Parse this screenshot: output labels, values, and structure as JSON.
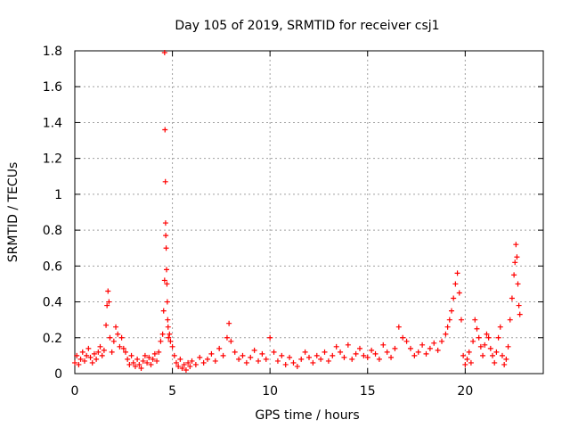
{
  "chart_data": {
    "type": "scatter",
    "title": "Day 105 of 2019, SRMTID for receiver csj1",
    "xlabel": "GPS time / hours",
    "ylabel": "SRMTID / TECUs",
    "xlim": [
      0,
      24
    ],
    "ylim": [
      0,
      1.8
    ],
    "xticks": [
      0,
      5,
      10,
      15,
      20
    ],
    "yticks": [
      0,
      0.2,
      0.4,
      0.6,
      0.8,
      1,
      1.2,
      1.4,
      1.6,
      1.8
    ],
    "xtick_labels": [
      "0",
      "5",
      "10",
      "15",
      "20"
    ],
    "ytick_labels": [
      "0",
      "0.2",
      "0.4",
      "0.6",
      "0.8",
      "1",
      "1.2",
      "1.4",
      "1.6",
      "1.8"
    ],
    "grid": true,
    "marker": "plus",
    "color": "#ff0000",
    "series": [
      {
        "name": "csj1",
        "x": [
          0.0,
          0.1,
          0.2,
          0.3,
          0.4,
          0.5,
          0.6,
          0.7,
          0.8,
          0.9,
          1.0,
          1.1,
          1.2,
          1.3,
          1.4,
          1.5,
          1.6,
          1.65,
          1.7,
          1.75,
          1.8,
          1.9,
          2.0,
          2.1,
          2.2,
          2.3,
          2.4,
          2.5,
          2.6,
          2.7,
          2.8,
          2.9,
          3.0,
          3.1,
          3.2,
          3.3,
          3.4,
          3.5,
          3.6,
          3.7,
          3.8,
          3.9,
          4.0,
          4.1,
          4.2,
          4.3,
          4.4,
          4.5,
          4.55,
          4.6,
          4.6,
          4.62,
          4.64,
          4.65,
          4.66,
          4.68,
          4.7,
          4.72,
          4.74,
          4.76,
          4.78,
          4.8,
          4.85,
          4.9,
          5.0,
          5.1,
          5.2,
          5.3,
          5.4,
          5.5,
          5.6,
          5.7,
          5.8,
          5.9,
          6.0,
          6.2,
          6.4,
          6.6,
          6.8,
          7.0,
          7.2,
          7.4,
          7.6,
          7.8,
          7.9,
          8.0,
          8.2,
          8.4,
          8.6,
          8.8,
          9.0,
          9.2,
          9.4,
          9.6,
          9.8,
          10.0,
          10.2,
          10.4,
          10.6,
          10.8,
          11.0,
          11.2,
          11.4,
          11.6,
          11.8,
          12.0,
          12.2,
          12.4,
          12.6,
          12.8,
          13.0,
          13.2,
          13.4,
          13.6,
          13.8,
          14.0,
          14.2,
          14.4,
          14.6,
          14.8,
          15.0,
          15.2,
          15.4,
          15.6,
          15.8,
          16.0,
          16.2,
          16.4,
          16.6,
          16.8,
          17.0,
          17.2,
          17.4,
          17.6,
          17.8,
          18.0,
          18.2,
          18.4,
          18.6,
          18.8,
          19.0,
          19.1,
          19.2,
          19.3,
          19.4,
          19.5,
          19.6,
          19.7,
          19.8,
          19.9,
          20.0,
          20.1,
          20.2,
          20.3,
          20.4,
          20.5,
          20.6,
          20.7,
          20.8,
          20.9,
          21.0,
          21.1,
          21.2,
          21.3,
          21.4,
          21.5,
          21.6,
          21.7,
          21.8,
          21.9,
          22.0,
          22.1,
          22.2,
          22.3,
          22.4,
          22.5,
          22.55,
          22.6,
          22.65,
          22.7,
          22.75,
          22.8
        ],
        "y": [
          0.06,
          0.1,
          0.05,
          0.08,
          0.12,
          0.07,
          0.1,
          0.14,
          0.09,
          0.06,
          0.11,
          0.08,
          0.12,
          0.15,
          0.1,
          0.13,
          0.27,
          0.38,
          0.46,
          0.4,
          0.2,
          0.12,
          0.18,
          0.26,
          0.22,
          0.15,
          0.2,
          0.14,
          0.12,
          0.08,
          0.05,
          0.1,
          0.06,
          0.04,
          0.08,
          0.05,
          0.03,
          0.07,
          0.1,
          0.06,
          0.09,
          0.05,
          0.08,
          0.11,
          0.07,
          0.12,
          0.18,
          0.22,
          0.35,
          0.52,
          1.79,
          1.36,
          1.07,
          0.84,
          0.77,
          0.7,
          0.58,
          0.5,
          0.4,
          0.3,
          0.26,
          0.2,
          0.22,
          0.18,
          0.15,
          0.1,
          0.06,
          0.04,
          0.08,
          0.03,
          0.05,
          0.02,
          0.06,
          0.04,
          0.07,
          0.05,
          0.09,
          0.06,
          0.08,
          0.11,
          0.07,
          0.14,
          0.1,
          0.2,
          0.28,
          0.18,
          0.12,
          0.08,
          0.1,
          0.06,
          0.09,
          0.13,
          0.07,
          0.11,
          0.08,
          0.2,
          0.12,
          0.07,
          0.1,
          0.05,
          0.09,
          0.06,
          0.04,
          0.08,
          0.12,
          0.09,
          0.06,
          0.1,
          0.08,
          0.12,
          0.07,
          0.1,
          0.15,
          0.12,
          0.09,
          0.16,
          0.08,
          0.11,
          0.14,
          0.1,
          0.09,
          0.13,
          0.11,
          0.08,
          0.16,
          0.12,
          0.09,
          0.14,
          0.26,
          0.2,
          0.18,
          0.14,
          0.1,
          0.12,
          0.16,
          0.11,
          0.14,
          0.17,
          0.13,
          0.18,
          0.22,
          0.26,
          0.3,
          0.35,
          0.42,
          0.5,
          0.56,
          0.45,
          0.3,
          0.1,
          0.05,
          0.08,
          0.12,
          0.06,
          0.18,
          0.3,
          0.25,
          0.2,
          0.15,
          0.1,
          0.16,
          0.22,
          0.2,
          0.14,
          0.1,
          0.06,
          0.12,
          0.2,
          0.26,
          0.1,
          0.05,
          0.08,
          0.15,
          0.3,
          0.42,
          0.55,
          0.62,
          0.72,
          0.65,
          0.5,
          0.38,
          0.33
        ]
      }
    ]
  }
}
